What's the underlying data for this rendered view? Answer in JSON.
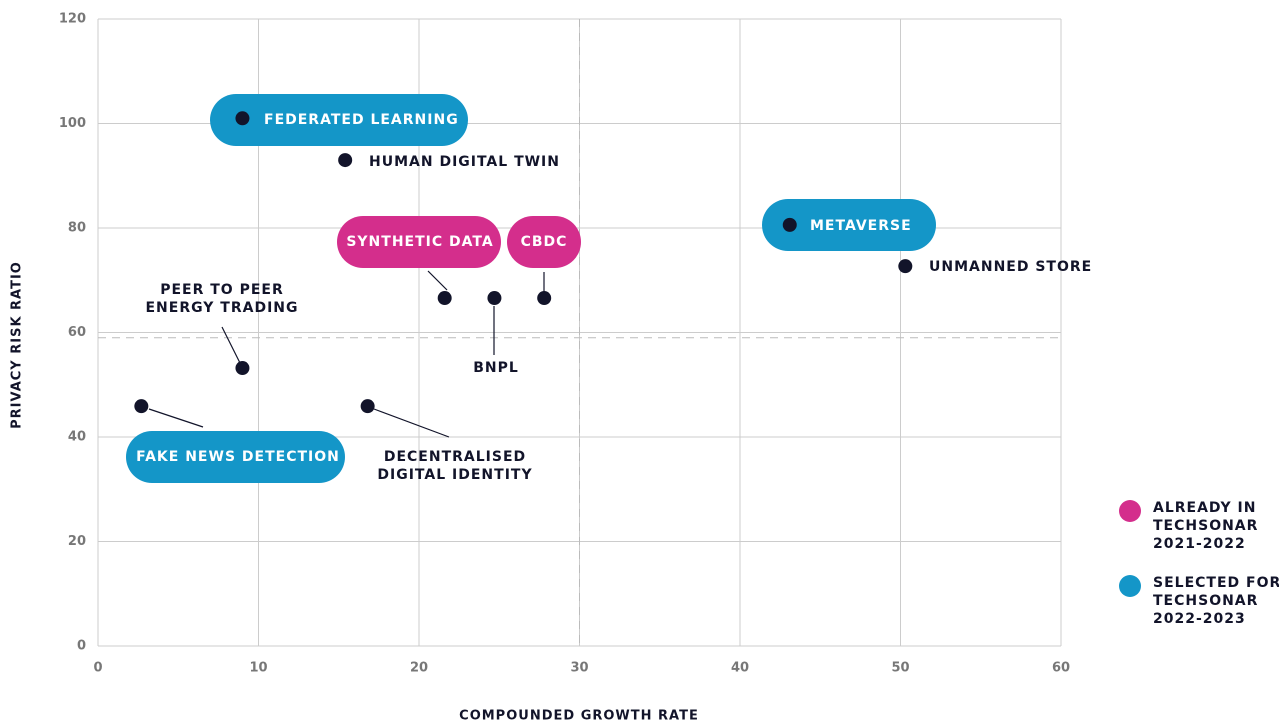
{
  "chart_data": {
    "type": "scatter",
    "x_label": "COMPOUNDED GROWTH RATE",
    "y_label": "PRIVACY RISK RATIO",
    "xlim": [
      0,
      60
    ],
    "xticks": [
      0,
      10,
      20,
      30,
      40,
      50,
      60
    ],
    "ylim": [
      0,
      120
    ],
    "yticks": [
      0,
      20,
      40,
      60,
      80,
      100,
      120
    ],
    "grid": true,
    "threshold_x": 30,
    "threshold_y": 59,
    "point_color": "#12142a",
    "series": [
      {
        "name": [
          "ALREADY IN",
          "TECHSONAR",
          "2021-2022"
        ],
        "color": "#d42e8c"
      },
      {
        "name": [
          "SELECTED FOR",
          "TECHSONAR",
          "2022-2023"
        ],
        "color": "#1496c8"
      }
    ],
    "points": [
      {
        "label": [
          "FEDERATED LEARNING"
        ],
        "x": 9,
        "y": 101,
        "series": 1
      },
      {
        "label": [
          "HUMAN DIGITAL TWIN"
        ],
        "x": 15.4,
        "y": 93,
        "series": null
      },
      {
        "label": [
          "SYNTHETIC DATA"
        ],
        "x": 21.6,
        "y": 66.6,
        "series": 0
      },
      {
        "label": [
          "BNPL"
        ],
        "x": 24.7,
        "y": 66.6,
        "series": null
      },
      {
        "label": [
          "CBDC"
        ],
        "x": 27.8,
        "y": 66.6,
        "series": 0
      },
      {
        "label": [
          "METAVERSE"
        ],
        "x": 43.1,
        "y": 80.6,
        "series": 1
      },
      {
        "label": [
          "UNMANNED STORE"
        ],
        "x": 50.3,
        "y": 72.7,
        "series": null
      },
      {
        "label": [
          "PEER TO PEER",
          "ENERGY TRADING"
        ],
        "x": 9,
        "y": 53.2,
        "series": null
      },
      {
        "label": [
          "FAKE NEWS DETECTION"
        ],
        "x": 2.7,
        "y": 45.9,
        "series": 1
      },
      {
        "label": [
          "DECENTRALISED",
          "DIGITAL IDENTITY"
        ],
        "x": 16.8,
        "y": 45.9,
        "series": null
      }
    ]
  }
}
